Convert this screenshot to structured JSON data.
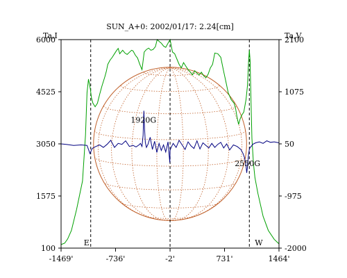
{
  "chart_data": {
    "type": "line",
    "title": "SUN_A+0: 2002/01/17: 2.24[cm]",
    "xlabel": "",
    "y_left_label": "Ta,I",
    "y_right_label": "Ta,V",
    "xlim": [
      -1469,
      1464
    ],
    "ylim_left": [
      100,
      6000
    ],
    "ylim_right": [
      -2000,
      2100
    ],
    "x_ticks": [
      {
        "value": -1469,
        "label": "-1469'"
      },
      {
        "value": -736,
        "label": "-736'"
      },
      {
        "value": -2,
        "label": "-2'"
      },
      {
        "value": 731,
        "label": "731'"
      },
      {
        "value": 1464,
        "label": "1464'"
      }
    ],
    "y_left_ticks": [
      {
        "value": 6000,
        "label": "6000"
      },
      {
        "value": 4525,
        "label": "4525"
      },
      {
        "value": 3050,
        "label": "3050"
      },
      {
        "value": 1575,
        "label": "1575"
      },
      {
        "value": 100,
        "label": "100"
      }
    ],
    "y_right_ticks": [
      {
        "value": 2100,
        "label": "2100"
      },
      {
        "value": 1075,
        "label": "1075"
      },
      {
        "value": 50,
        "label": "50"
      },
      {
        "value": -975,
        "label": "-975"
      },
      {
        "value": -2000,
        "label": "-2000"
      }
    ],
    "markers": [
      {
        "x": -1070,
        "label": "E"
      },
      {
        "x": -2,
        "label": ""
      },
      {
        "x": 1065,
        "label": "W"
      }
    ],
    "annotations": [
      {
        "text": "1920G",
        "x": -360,
        "y": 3650
      },
      {
        "text": "2550G",
        "x": 1040,
        "y": 2420
      }
    ],
    "solar_disk": {
      "center_x": -2,
      "center_y": 3050,
      "radius_x": 1030
    },
    "series": [
      {
        "name": "Ta,I",
        "axis": "left",
        "color": "#00a000",
        "x": [
          -1469,
          -1420,
          -1380,
          -1330,
          -1260,
          -1180,
          -1140,
          -1120,
          -1100,
          -1085,
          -1075,
          -1060,
          -1040,
          -1010,
          -980,
          -950,
          -920,
          -880,
          -860,
          -840,
          -810,
          -780,
          -750,
          -720,
          -700,
          -680,
          -660,
          -640,
          -610,
          -580,
          -550,
          -520,
          -500,
          -470,
          -440,
          -410,
          -380,
          -350,
          -320,
          -290,
          -260,
          -230,
          -200,
          -175,
          -150,
          -120,
          -90,
          -60,
          -30,
          -2,
          30,
          60,
          90,
          120,
          150,
          180,
          210,
          240,
          270,
          300,
          330,
          360,
          390,
          420,
          450,
          480,
          510,
          540,
          570,
          600,
          640,
          680,
          700,
          720,
          750,
          780,
          820,
          860,
          880,
          900,
          920,
          940,
          960,
          990,
          1020,
          1040,
          1055,
          1065,
          1075,
          1085,
          1100,
          1120,
          1140,
          1180,
          1250,
          1320,
          1400,
          1464
        ],
        "values": [
          200,
          240,
          360,
          600,
          1200,
          2000,
          3300,
          4500,
          4880,
          4720,
          4600,
          4350,
          4200,
          4100,
          4200,
          4450,
          4680,
          4950,
          5100,
          5300,
          5420,
          5500,
          5600,
          5700,
          5750,
          5600,
          5650,
          5700,
          5620,
          5580,
          5640,
          5700,
          5680,
          5560,
          5480,
          5300,
          5150,
          5650,
          5720,
          5760,
          5700,
          5720,
          5800,
          6000,
          5950,
          5900,
          5820,
          5780,
          5900,
          6000,
          5650,
          5600,
          5450,
          5300,
          5200,
          5350,
          5250,
          5150,
          5080,
          5000,
          5120,
          5050,
          5000,
          5080,
          4980,
          4920,
          5020,
          5200,
          5300,
          5620,
          5600,
          5500,
          5300,
          5100,
          4800,
          4500,
          4300,
          4200,
          4050,
          3800,
          3600,
          3750,
          3850,
          3950,
          4300,
          4700,
          5400,
          5700,
          5400,
          4500,
          3200,
          2500,
          2100,
          1650,
          1000,
          600,
          350,
          220
        ]
      },
      {
        "name": "Ta,V",
        "axis": "right",
        "color": "#000080",
        "x": [
          -1469,
          -1400,
          -1300,
          -1200,
          -1120,
          -1080,
          -1050,
          -1000,
          -950,
          -900,
          -850,
          -800,
          -750,
          -700,
          -650,
          -600,
          -550,
          -500,
          -460,
          -420,
          -400,
          -380,
          -365,
          -355,
          -345,
          -335,
          -320,
          -300,
          -270,
          -240,
          -210,
          -180,
          -150,
          -120,
          -90,
          -60,
          -30,
          -5,
          -2,
          10,
          40,
          80,
          120,
          160,
          200,
          240,
          280,
          320,
          360,
          400,
          440,
          480,
          520,
          560,
          600,
          640,
          680,
          720,
          760,
          800,
          850,
          900,
          950,
          980,
          1000,
          1020,
          1030,
          1040,
          1045,
          1055,
          1065,
          1075,
          1090,
          1110,
          1150,
          1200,
          1250,
          1300,
          1350,
          1400,
          1464
        ],
        "values": [
          50,
          40,
          20,
          30,
          20,
          -140,
          -40,
          0,
          30,
          -20,
          40,
          120,
          -20,
          60,
          40,
          110,
          0,
          20,
          -10,
          30,
          60,
          0,
          220,
          700,
          350,
          80,
          -20,
          40,
          180,
          -60,
          100,
          -120,
          60,
          -80,
          30,
          -110,
          90,
          -320,
          -80,
          -30,
          60,
          -20,
          120,
          30,
          -60,
          90,
          10,
          -40,
          110,
          -50,
          70,
          20,
          -30,
          60,
          -20,
          40,
          80,
          -30,
          50,
          -70,
          30,
          0,
          -60,
          -140,
          -220,
          -380,
          -520,
          -400,
          -300,
          -150,
          -60,
          -20,
          0,
          40,
          70,
          90,
          60,
          110,
          80,
          90,
          70
        ]
      }
    ]
  }
}
